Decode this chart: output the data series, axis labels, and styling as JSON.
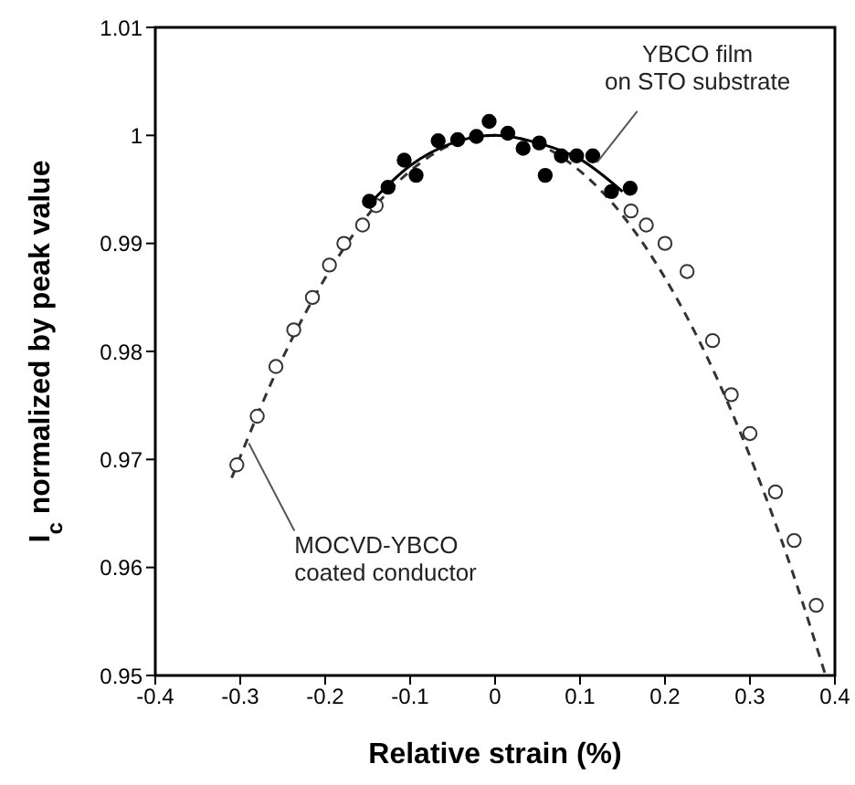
{
  "chart_data": {
    "type": "scatter",
    "xlabel": "Relative strain (%)",
    "ylabel": "I$_{c}$ normalized by peak value",
    "xlim": [
      -0.4,
      0.4
    ],
    "xticks": [
      -0.4,
      -0.3,
      -0.2,
      -0.1,
      0,
      0.1,
      0.2,
      0.3,
      0.4
    ],
    "ylim": [
      0.95,
      1.01
    ],
    "yticks": [
      0.95,
      0.96,
      0.97,
      0.98,
      0.99,
      1,
      1.01
    ],
    "grid": false,
    "legend": false,
    "marker": "circle",
    "series": [
      {
        "type": "line",
        "color": "#333333",
        "line_style": "dashed",
        "marker": "none",
        "x": [
          -0.31,
          -0.25,
          -0.2,
          -0.15,
          -0.1,
          -0.05,
          0,
          0.05,
          0.1,
          0.15,
          0.2,
          0.25,
          0.3,
          0.35,
          0.389
        ],
        "values": [
          0.9683,
          0.9794,
          0.9868,
          0.9926,
          0.9967,
          0.9992,
          1,
          0.9992,
          0.9967,
          0.9926,
          0.9868,
          0.9794,
          0.9703,
          0.9596,
          0.95
        ]
      },
      {
        "type": "line",
        "color": "#000000",
        "line_style": "solid",
        "marker": "none",
        "x": [
          -0.15,
          -0.1,
          -0.05,
          0,
          0.05,
          0.1,
          0.15
        ],
        "values": [
          0.9935,
          0.9972,
          0.9993,
          1,
          0.9993,
          0.9978,
          0.9948
        ]
      },
      {
        "color": "#333333",
        "marker": "open circle",
        "x": [
          -0.304,
          -0.28,
          -0.258,
          -0.237,
          -0.215,
          -0.195,
          -0.178,
          -0.156,
          -0.14,
          0.14,
          0.16,
          0.178,
          0.2,
          0.226,
          0.256,
          0.278,
          0.3,
          0.33,
          0.352,
          0.378
        ],
        "values": [
          0.9695,
          0.974,
          0.9786,
          0.982,
          0.985,
          0.988,
          0.99,
          0.9917,
          0.9935,
          null,
          0.993,
          0.9917,
          0.99,
          0.9874,
          0.981,
          0.976,
          0.9724,
          0.967,
          0.9625,
          0.9565
        ]
      },
      {
        "color": "#000000",
        "x": [
          -0.148,
          -0.126,
          -0.107,
          -0.093,
          -0.067,
          -0.044,
          -0.022,
          -0.007,
          0.015,
          0.033,
          0.052,
          0.059,
          0.078,
          0.096,
          0.115,
          0.137,
          0.159
        ],
        "values": [
          0.9939,
          0.9952,
          0.9977,
          0.9963,
          0.9995,
          0.9996,
          0.9999,
          1.0013,
          1.0002,
          0.9988,
          0.9993,
          0.9963,
          0.9981,
          0.9981,
          0.9981,
          0.9948,
          0.9951
        ]
      }
    ],
    "annotations": [
      {
        "text": "YBCO film\non STO substrate",
        "x": 0.12,
        "y": 0.9975
      },
      {
        "text": "MOCVD-YBCO\ncoated conductor",
        "x": -0.29,
        "y": 0.9715
      }
    ]
  }
}
